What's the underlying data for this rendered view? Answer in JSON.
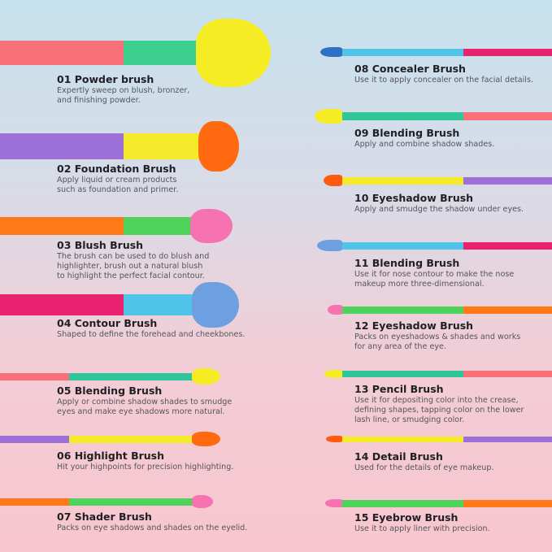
{
  "colors": {
    "coral": "#f87078",
    "purple": "#9d6fd9",
    "orange": "#ff7a17",
    "magenta": "#e9226f",
    "green": "#4fd35a",
    "teal": "#2fc79a",
    "yellow": "#f5ea2a",
    "blue": "#4fc3e8",
    "title": "#1f1f24",
    "description": "#55555c"
  },
  "brushes": [
    {
      "title": "01 Powder brush",
      "description": [
        "Expertly sweep on blush, bronzer,",
        "and finishing powder."
      ],
      "handle": "#f87078",
      "ferrule": "#3ccf8e",
      "head": "#f6ec24"
    },
    {
      "title": "02 Foundation Brush",
      "description": [
        "Apply liquid or cream products",
        "such as foundation and primer."
      ],
      "handle": "#9d6fd9",
      "ferrule": "#f5ea2a",
      "head": "#ff6a10"
    },
    {
      "title": "03 Blush Brush",
      "description": [
        "The brush can be used to do blush and",
        "highlighter, brush out a natural blush",
        "to highlight the perfect facial contour."
      ],
      "handle": "#ff7a17",
      "ferrule": "#4fd35a",
      "head": "#f772b0"
    },
    {
      "title": "04 Contour Brush",
      "description": [
        "Shaped to define the forehead and cheekbones."
      ],
      "handle": "#e9226f",
      "ferrule": "#4fc3e8",
      "head": "#6e9fe0"
    },
    {
      "title": "05 Blending Brush",
      "description": [
        "Apply or combine shadow shades to smudge",
        "eyes and make eye shadows more natural."
      ],
      "handle": "#f87078",
      "ferrule": "#2fc79a",
      "head": "#f6ec24"
    },
    {
      "title": "06 Highlight Brush",
      "description": [
        "Hit your highpoints for precision highlighting."
      ],
      "handle": "#9d6fd9",
      "ferrule": "#f5ea2a",
      "head": "#ff6a10"
    },
    {
      "title": "07 Shader Brush",
      "description": [
        "Packs on eye shadows and shades on the eyelid."
      ],
      "handle": "#ff7a17",
      "ferrule": "#4fd35a",
      "head": "#f772b0"
    },
    {
      "title": "08 Concealer Brush",
      "description": [
        "Use it to apply concealer on the facial details."
      ],
      "handle": "#e9226f",
      "ferrule": "#4fc3e8",
      "head": "#2f6fc4"
    },
    {
      "title": "09 Blending Brush",
      "description": [
        "Apply and combine shadow shades."
      ],
      "handle": "#f87078",
      "ferrule": "#2fc79a",
      "head": "#f6ec24"
    },
    {
      "title": "10 Eyeshadow Brush",
      "description": [
        "Apply and smudge the shadow under eyes."
      ],
      "handle": "#9d6fd9",
      "ferrule": "#f5ea2a",
      "head": "#ff5a10"
    },
    {
      "title": "11 Blending Brush",
      "description": [
        "Use it for nose contour to make the nose",
        "makeup more three-dimensional."
      ],
      "handle": "#e9226f",
      "ferrule": "#4fc3e8",
      "head": "#6e9fe0"
    },
    {
      "title": "12 Eyeshadow Brush",
      "description": [
        "Packs on eyeshadows & shades and works",
        "for any area of the eye."
      ],
      "handle": "#ff7a17",
      "ferrule": "#4fd35a",
      "head": "#f772b0"
    },
    {
      "title": "13 Pencil Brush",
      "description": [
        "Use it for depositing color into the crease,",
        "defining shapes, tapping color on the lower",
        "lash line, or smudging color."
      ],
      "handle": "#f87078",
      "ferrule": "#2fc79a",
      "head": "#f6ec24"
    },
    {
      "title": "14 Detail Brush",
      "description": [
        "Used for the details of eye makeup."
      ],
      "handle": "#9d6fd9",
      "ferrule": "#f5ea2a",
      "head": "#ff5a10"
    },
    {
      "title": "15 Eyebrow Brush",
      "description": [
        "Use it to apply liner with precision."
      ],
      "handle": "#ff7a17",
      "ferrule": "#4fd35a",
      "head": "#f772b0"
    }
  ]
}
